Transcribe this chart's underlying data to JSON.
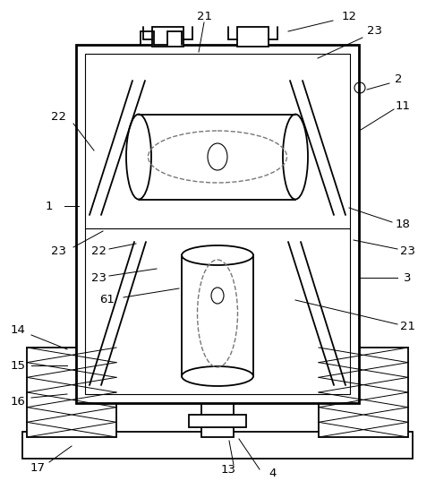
{
  "bg_color": "#ffffff",
  "line_color": "#000000",
  "dashed_color": "#666666",
  "lw_thick": 2.0,
  "lw_main": 1.3,
  "lw_thin": 0.8,
  "lw_ann": 0.7,
  "fs": 9.5
}
